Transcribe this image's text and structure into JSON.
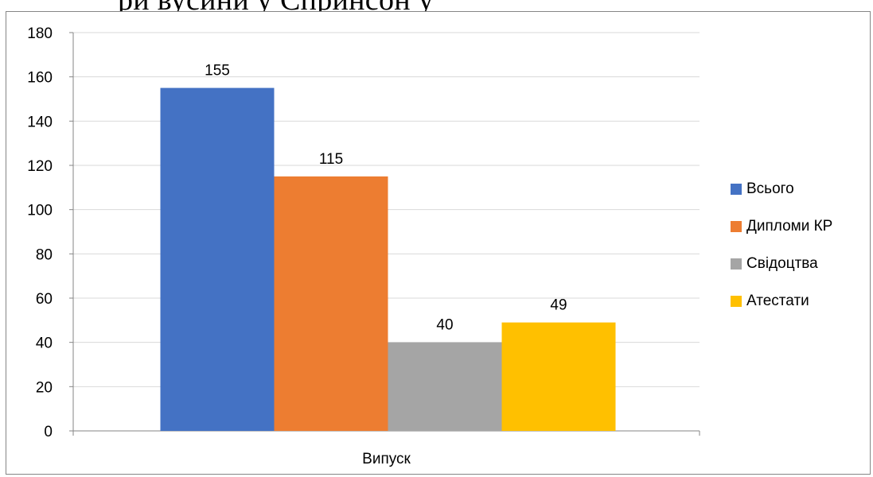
{
  "header_text": "ри вусини у Спринсон у",
  "chart_data": {
    "type": "bar",
    "categories": [
      "Випуск"
    ],
    "series": [
      {
        "name": "Всього",
        "values": [
          155
        ],
        "color": "#4472C4"
      },
      {
        "name": "Дипломи КР",
        "values": [
          115
        ],
        "color": "#ED7D31"
      },
      {
        "name": "Свідоцтва",
        "values": [
          40
        ],
        "color": "#A5A5A5"
      },
      {
        "name": "Атестати",
        "values": [
          49
        ],
        "color": "#FFC000"
      }
    ],
    "ylim": [
      0,
      180
    ],
    "y_ticks": [
      0,
      20,
      40,
      60,
      80,
      100,
      120,
      140,
      160,
      180
    ],
    "grid": true,
    "legend_position": "right",
    "data_labels": true
  }
}
